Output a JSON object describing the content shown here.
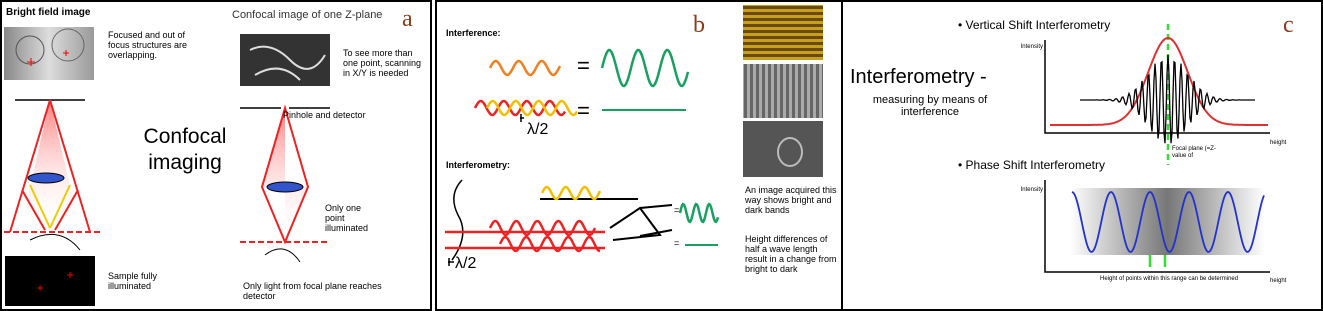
{
  "panel_a": {
    "label": "a",
    "bright_field_title": "Bright field image",
    "bright_field_note": "Focused and out of focus structures are overlapping.",
    "confocal_title": "Confocal image  of one Z-plane",
    "scanning_note": "To see more than one point, scanning in X/Y is needed",
    "pinhole_label": "Pinhole and detector",
    "center_title": "Confocal imaging",
    "one_point_note": "Only one point illuminated",
    "sample_note": "Sample fully illuminated",
    "focal_note": "Only light from focal plane reaches detector"
  },
  "panel_b": {
    "label": "b",
    "interference_heading": "Interference:",
    "equals": [
      "=",
      "=",
      "=",
      "="
    ],
    "half_wave_labels": [
      "λ/2",
      "λ/2"
    ],
    "interferometry_heading": "Interferometry:",
    "image_note": "An image acquired this way shows bright and dark bands",
    "height_note": "Height differences of half a wave length result in a change from bright to dark"
  },
  "panel_c": {
    "label": "c",
    "title": "Interferometry -",
    "subtitle": "measuring by means of interference",
    "vsi": {
      "title": "Vertical Shift Interferometry",
      "y_axis_label": "Intensity",
      "x_axis_label": "height",
      "focal_note": "Focal plane (=Z-value of"
    },
    "psi": {
      "title": "Phase Shift  Interferometry",
      "y_axis_label": "Intensity",
      "x_axis_label": "height",
      "range_note": "Height of points within this range can be determined"
    }
  }
}
